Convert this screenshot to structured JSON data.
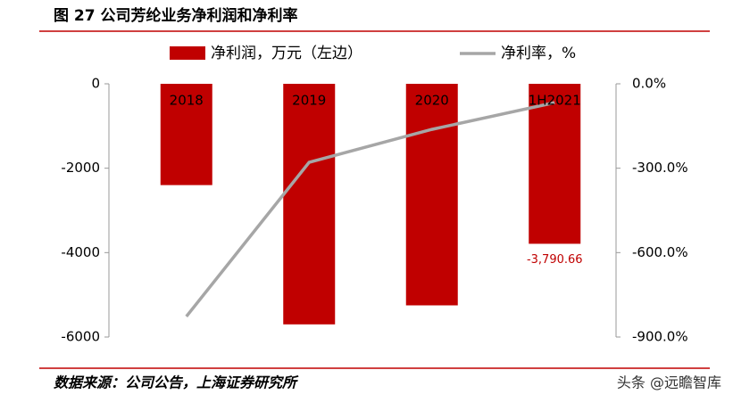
{
  "chart_data": {
    "type": "bar-line",
    "title": "图 27 公司芳纶业务净利润和净利率",
    "categories": [
      "2018",
      "2019",
      "2020",
      "1H2021"
    ],
    "series": [
      {
        "name": "净利润，万元（左边）",
        "color": "#c00000",
        "type": "bar",
        "values": [
          -2400,
          -5700,
          -5250,
          -3790.66
        ],
        "value_labels": [
          null,
          null,
          null,
          "-3,790.66"
        ]
      },
      {
        "name": "净利率，%",
        "color": "#a6a6a6",
        "type": "line",
        "axis": "y2",
        "values": [
          -827,
          -279,
          -162,
          -67
        ]
      }
    ],
    "ylim": [
      0,
      -6000
    ],
    "yticks": [
      0,
      -2000,
      -4000,
      -6000
    ],
    "y2lim": [
      0,
      -900
    ],
    "y2ticks": [
      {
        "value": 0,
        "label": "0.0%"
      },
      {
        "value": -300,
        "label": "-300.0%"
      },
      {
        "value": -600,
        "label": "-600.0%"
      },
      {
        "value": -900,
        "label": "-900.0%"
      }
    ],
    "source": "数据来源：公司公告，上海证券研究所",
    "watermark": "头条 @远瞻智库"
  }
}
